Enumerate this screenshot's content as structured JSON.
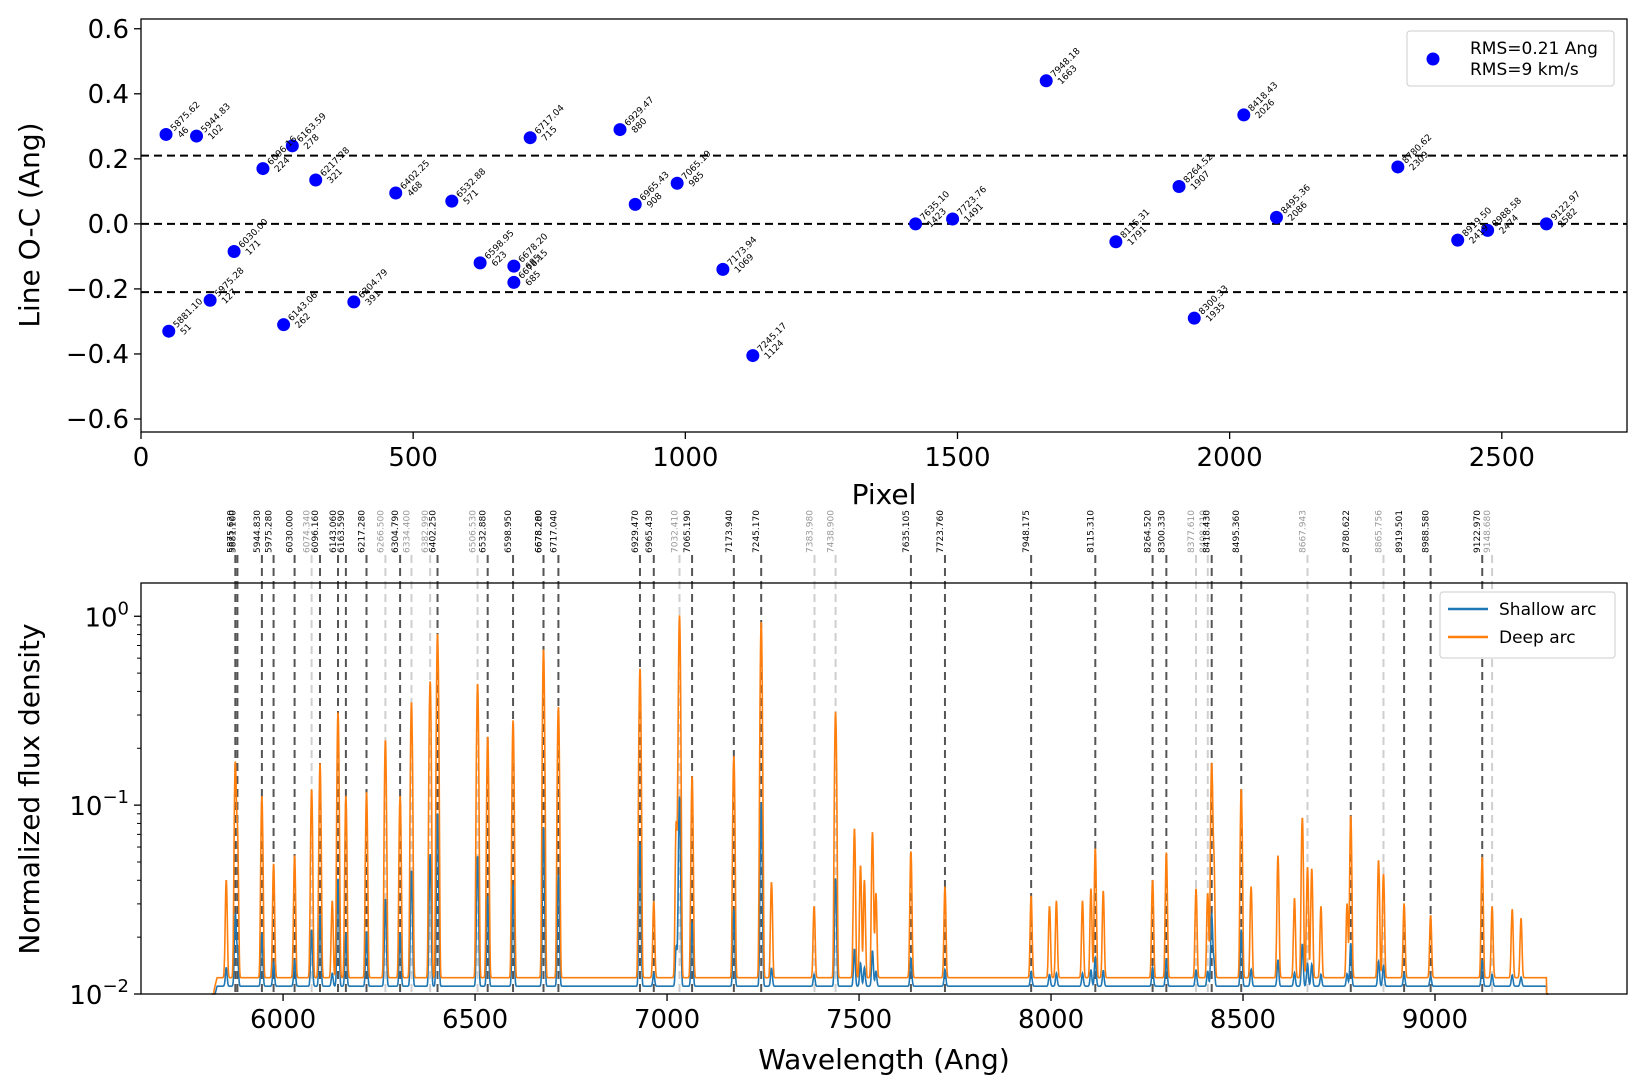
{
  "chart_data": [
    {
      "type": "scatter",
      "xlabel": "Pixel",
      "ylabel": "Line O-C (Ang)",
      "xlim": [
        0,
        2730
      ],
      "ylim": [
        -0.64,
        0.63
      ],
      "xticks": [
        0,
        500,
        1000,
        1500,
        2000,
        2500
      ],
      "yticks": [
        -0.6,
        -0.4,
        -0.2,
        0.0,
        0.2,
        0.4,
        0.6
      ],
      "ytick_labels": [
        "−0.6",
        "−0.4",
        "−0.2",
        "0.0",
        "0.2",
        "0.4",
        "0.6"
      ],
      "hlines": [
        0.0,
        0.21,
        -0.21
      ],
      "legend": [
        "RMS=0.21 Ang",
        "RMS=9 km/s"
      ],
      "point_color": "#0000ff",
      "points": [
        {
          "x": 46,
          "y": 0.275,
          "wl": "5875.62",
          "px": "46"
        },
        {
          "x": 102,
          "y": 0.27,
          "wl": "5944.83",
          "px": "102"
        },
        {
          "x": 51,
          "y": -0.33,
          "wl": "5881.10",
          "px": "51"
        },
        {
          "x": 127,
          "y": -0.235,
          "wl": "5975.28",
          "px": "127"
        },
        {
          "x": 171,
          "y": -0.085,
          "wl": "6030.00",
          "px": "171"
        },
        {
          "x": 224,
          "y": 0.17,
          "wl": "6096.16",
          "px": "224"
        },
        {
          "x": 278,
          "y": 0.24,
          "wl": "6163.59",
          "px": "278"
        },
        {
          "x": 262,
          "y": -0.31,
          "wl": "6143.06",
          "px": "262"
        },
        {
          "x": 321,
          "y": 0.135,
          "wl": "6217.28",
          "px": "321"
        },
        {
          "x": 391,
          "y": -0.24,
          "wl": "6304.79",
          "px": "391"
        },
        {
          "x": 468,
          "y": 0.095,
          "wl": "6402.25",
          "px": "468"
        },
        {
          "x": 571,
          "y": 0.07,
          "wl": "6532.88",
          "px": "571"
        },
        {
          "x": 623,
          "y": -0.12,
          "wl": "6598.95",
          "px": "623"
        },
        {
          "x": 685,
          "y": -0.13,
          "wl": "6678.20",
          "px": "685"
        },
        {
          "x": 685,
          "y": -0.18,
          "wl": "6678.15",
          "px": "685"
        },
        {
          "x": 715,
          "y": 0.265,
          "wl": "6717.04",
          "px": "715"
        },
        {
          "x": 880,
          "y": 0.29,
          "wl": "6929.47",
          "px": "880"
        },
        {
          "x": 908,
          "y": 0.06,
          "wl": "6965.43",
          "px": "908"
        },
        {
          "x": 985,
          "y": 0.125,
          "wl": "7065.19",
          "px": "985"
        },
        {
          "x": 1069,
          "y": -0.14,
          "wl": "7173.94",
          "px": "1069"
        },
        {
          "x": 1124,
          "y": -0.405,
          "wl": "7245.17",
          "px": "1124"
        },
        {
          "x": 1423,
          "y": 0.0,
          "wl": "7635.10",
          "px": "1423"
        },
        {
          "x": 1491,
          "y": 0.015,
          "wl": "7723.76",
          "px": "1491"
        },
        {
          "x": 1663,
          "y": 0.44,
          "wl": "7948.18",
          "px": "1663"
        },
        {
          "x": 1791,
          "y": -0.055,
          "wl": "8115.31",
          "px": "1791"
        },
        {
          "x": 1907,
          "y": 0.115,
          "wl": "8264.52",
          "px": "1907"
        },
        {
          "x": 1935,
          "y": -0.29,
          "wl": "8300.33",
          "px": "1935"
        },
        {
          "x": 2026,
          "y": 0.335,
          "wl": "8418.43",
          "px": "2026"
        },
        {
          "x": 2086,
          "y": 0.02,
          "wl": "8495.36",
          "px": "2086"
        },
        {
          "x": 2309,
          "y": 0.175,
          "wl": "8780.62",
          "px": "2309"
        },
        {
          "x": 2419,
          "y": -0.05,
          "wl": "8919.50",
          "px": "2419"
        },
        {
          "x": 2474,
          "y": -0.02,
          "wl": "8988.58",
          "px": "2474"
        },
        {
          "x": 2582,
          "y": 0.0,
          "wl": "9122.97",
          "px": "2582"
        }
      ]
    },
    {
      "type": "line",
      "yscale": "log",
      "xlabel": "Wavelength (Ang)",
      "ylabel": "Normalized flux density",
      "xlim": [
        5630,
        9500
      ],
      "ylim": [
        0.01,
        1.5
      ],
      "xticks": [
        6000,
        6500,
        7000,
        7500,
        8000,
        8500,
        9000
      ],
      "yticks": [
        {
          "value": 1,
          "base": "10",
          "exp": "0"
        },
        {
          "value": 0.1,
          "base": "10",
          "exp": "−1"
        },
        {
          "value": 0.01,
          "base": "10",
          "exp": "−2"
        }
      ],
      "wl_range": [
        5820,
        9290
      ],
      "series": [
        {
          "name": "Shallow arc",
          "color": "#1f77b4",
          "baseline": 0.011,
          "scale": 0.1
        },
        {
          "name": "Deep arc",
          "color": "#ff7f0e",
          "baseline": 0.0122,
          "scale": 1.0
        }
      ],
      "peaks": [
        [
          5852,
          0.028
        ],
        [
          5875.6,
          0.155
        ],
        [
          5881,
          0.06
        ],
        [
          5944.8,
          0.1
        ],
        [
          5975.3,
          0.037
        ],
        [
          6030,
          0.042
        ],
        [
          6074.3,
          0.11
        ],
        [
          6096.2,
          0.155
        ],
        [
          6128,
          0.019
        ],
        [
          6143.1,
          0.3
        ],
        [
          6163.6,
          0.1
        ],
        [
          6217.3,
          0.105
        ],
        [
          6266.5,
          0.21
        ],
        [
          6304.8,
          0.1
        ],
        [
          6334.4,
          0.34
        ],
        [
          6383,
          0.022
        ],
        [
          6382.99,
          0.42
        ],
        [
          6402.3,
          0.8
        ],
        [
          6506.5,
          0.43
        ],
        [
          6532.9,
          0.22
        ],
        [
          6599,
          0.27
        ],
        [
          6678.3,
          0.66
        ],
        [
          6717,
          0.32
        ],
        [
          6929.5,
          0.52
        ],
        [
          6965.4,
          0.019
        ],
        [
          7024,
          0.07
        ],
        [
          7032.4,
          1.0
        ],
        [
          7065.2,
          0.13
        ],
        [
          7173.9,
          0.17
        ],
        [
          7245.2,
          0.92
        ],
        [
          7272,
          0.027
        ],
        [
          7383,
          0.017
        ],
        [
          7438.9,
          0.3
        ],
        [
          7488,
          0.063
        ],
        [
          7503.9,
          0.036
        ],
        [
          7514,
          0.028
        ],
        [
          7535,
          0.06
        ],
        [
          7544,
          0.022
        ],
        [
          7635.1,
          0.045
        ],
        [
          7723.8,
          0.025
        ],
        [
          7948.2,
          0.021
        ],
        [
          7996,
          0.017
        ],
        [
          8014,
          0.019
        ],
        [
          8082,
          0.019
        ],
        [
          8104,
          0.024
        ],
        [
          8115.3,
          0.047
        ],
        [
          8136,
          0.023
        ],
        [
          8264.5,
          0.028
        ],
        [
          8300.3,
          0.044
        ],
        [
          8377.6,
          0.024
        ],
        [
          8408,
          0.022
        ],
        [
          8418.4,
          0.155
        ],
        [
          8424,
          0.04
        ],
        [
          8495.4,
          0.11
        ],
        [
          8521,
          0.025
        ],
        [
          8591,
          0.042
        ],
        [
          8634,
          0.02
        ],
        [
          8654.4,
          0.074
        ],
        [
          8667.9,
          0.035
        ],
        [
          8679,
          0.034
        ],
        [
          8703,
          0.017
        ],
        [
          8771,
          0.018
        ],
        [
          8780.6,
          0.076
        ],
        [
          8853,
          0.039
        ],
        [
          8865.8,
          0.031
        ],
        [
          8919.5,
          0.018
        ],
        [
          8988.6,
          0.014
        ],
        [
          9122.9,
          0.041
        ],
        [
          9148.7,
          0.017
        ],
        [
          9201,
          0.016
        ],
        [
          9224,
          0.013
        ]
      ],
      "ref_lines": [
        {
          "wl": 5875.62,
          "label": "5875.620",
          "strong": true
        },
        {
          "wl": 5881.1,
          "label": "5881.100",
          "strong": true
        },
        {
          "wl": 5944.83,
          "label": "5944.830",
          "strong": true
        },
        {
          "wl": 5975.28,
          "label": "5975.280",
          "strong": true
        },
        {
          "wl": 6030.0,
          "label": "6030.000",
          "strong": true
        },
        {
          "wl": 6074.34,
          "label": "6074.340",
          "strong": false
        },
        {
          "wl": 6096.16,
          "label": "6096.160",
          "strong": true
        },
        {
          "wl": 6143.06,
          "label": "6143.060",
          "strong": true
        },
        {
          "wl": 6163.59,
          "label": "6163.590",
          "strong": true
        },
        {
          "wl": 6217.28,
          "label": "6217.280",
          "strong": true
        },
        {
          "wl": 6266.5,
          "label": "6266.500",
          "strong": false
        },
        {
          "wl": 6304.79,
          "label": "6304.790",
          "strong": true
        },
        {
          "wl": 6334.4,
          "label": "6334.400",
          "strong": false
        },
        {
          "wl": 6382.99,
          "label": "6382.990",
          "strong": false
        },
        {
          "wl": 6402.25,
          "label": "6402.250",
          "strong": true
        },
        {
          "wl": 6506.53,
          "label": "6506.530",
          "strong": false
        },
        {
          "wl": 6532.88,
          "label": "6532.880",
          "strong": true
        },
        {
          "wl": 6598.95,
          "label": "6598.950",
          "strong": true
        },
        {
          "wl": 6678.2,
          "label": "6678.200",
          "strong": true
        },
        {
          "wl": 6678.28,
          "label": "6678.280",
          "strong": true
        },
        {
          "wl": 6717.04,
          "label": "6717.040",
          "strong": true
        },
        {
          "wl": 6929.47,
          "label": "6929.470",
          "strong": true
        },
        {
          "wl": 6965.43,
          "label": "6965.430",
          "strong": true
        },
        {
          "wl": 7032.41,
          "label": "7032.410",
          "strong": false
        },
        {
          "wl": 7065.19,
          "label": "7065.190",
          "strong": true
        },
        {
          "wl": 7173.94,
          "label": "7173.940",
          "strong": true
        },
        {
          "wl": 7245.17,
          "label": "7245.170",
          "strong": true
        },
        {
          "wl": 7383.98,
          "label": "7383.980",
          "strong": false
        },
        {
          "wl": 7438.9,
          "label": "7438.900",
          "strong": false
        },
        {
          "wl": 7635.105,
          "label": "7635.105",
          "strong": true
        },
        {
          "wl": 7723.76,
          "label": "7723.760",
          "strong": true
        },
        {
          "wl": 7948.175,
          "label": "7948.175",
          "strong": true
        },
        {
          "wl": 8115.31,
          "label": "8115.310",
          "strong": true
        },
        {
          "wl": 8264.52,
          "label": "8264.520",
          "strong": true
        },
        {
          "wl": 8300.33,
          "label": "8300.330",
          "strong": true
        },
        {
          "wl": 8377.61,
          "label": "8377.610",
          "strong": false
        },
        {
          "wl": 8408.21,
          "label": "8408.210",
          "strong": false
        },
        {
          "wl": 8418.43,
          "label": "8418.430",
          "strong": true
        },
        {
          "wl": 8495.36,
          "label": "8495.360",
          "strong": true
        },
        {
          "wl": 8667.943,
          "label": "8667.943",
          "strong": false
        },
        {
          "wl": 8780.622,
          "label": "8780.622",
          "strong": true
        },
        {
          "wl": 8865.756,
          "label": "8865.756",
          "strong": false
        },
        {
          "wl": 8919.501,
          "label": "8919.501",
          "strong": true
        },
        {
          "wl": 8988.58,
          "label": "8988.580",
          "strong": true
        },
        {
          "wl": 9122.97,
          "label": "9122.970",
          "strong": true
        },
        {
          "wl": 9148.68,
          "label": "9148.680",
          "strong": false
        }
      ],
      "legend": [
        "Shallow arc",
        "Deep arc"
      ]
    }
  ]
}
